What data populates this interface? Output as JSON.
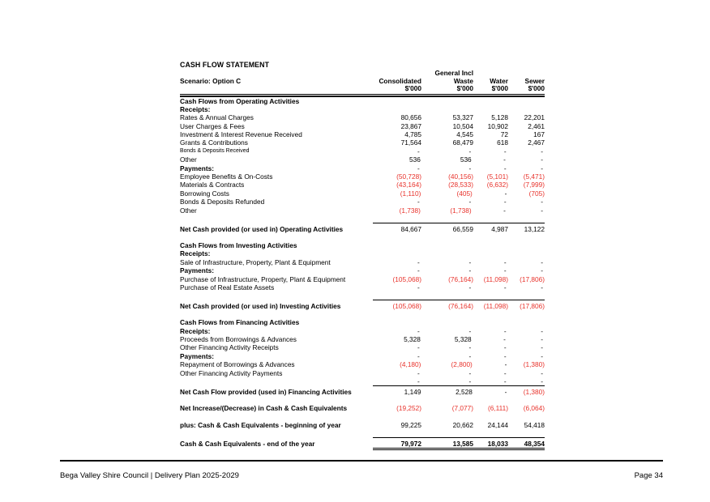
{
  "statement": {
    "title": "CASH FLOW STATEMENT",
    "scenario_label": "Scenario:  Option C",
    "header": {
      "line1": [
        "",
        "General Incl",
        "",
        ""
      ],
      "line2": [
        "Consolidated",
        "Waste",
        "Water",
        "Sewer"
      ],
      "line3": [
        "$'000",
        "$'000",
        "$'000",
        "$'000"
      ]
    },
    "rows": [
      {
        "type": "section",
        "label": "Cash Flows from Operating Activities",
        "values": [
          "",
          "",
          "",
          ""
        ]
      },
      {
        "type": "subhead",
        "label": "Receipts:",
        "values": [
          "",
          "",
          "",
          ""
        ]
      },
      {
        "type": "item",
        "label": "Rates & Annual Charges",
        "values": [
          "80,656",
          "53,327",
          "5,128",
          "22,201"
        ]
      },
      {
        "type": "item",
        "label": "User Charges & Fees",
        "values": [
          "23,867",
          "10,504",
          "10,902",
          "2,461"
        ]
      },
      {
        "type": "item",
        "label": "Investment & Interest Revenue Received",
        "values": [
          "4,785",
          "4,545",
          "72",
          "167"
        ]
      },
      {
        "type": "item",
        "label": "Grants & Contributions",
        "values": [
          "71,564",
          "68,479",
          "618",
          "2,467"
        ]
      },
      {
        "type": "item-small",
        "label": "Bonds & Deposits Received",
        "values": [
          "-",
          "-",
          "-",
          "-"
        ]
      },
      {
        "type": "item",
        "label": "Other",
        "values": [
          "536",
          "536",
          "-",
          "-"
        ]
      },
      {
        "type": "subhead",
        "label": "Payments:",
        "values": [
          "-",
          "-",
          "-",
          "-"
        ]
      },
      {
        "type": "item",
        "label": "Employee Benefits & On-Costs",
        "values": [
          "(50,728)",
          "(40,156)",
          "(5,101)",
          "(5,471)"
        ]
      },
      {
        "type": "item",
        "label": "Materials & Contracts",
        "values": [
          "(43,164)",
          "(28,533)",
          "(6,632)",
          "(7,999)"
        ]
      },
      {
        "type": "item",
        "label": "Borrowing Costs",
        "values": [
          "(1,110)",
          "(405)",
          "-",
          "(705)"
        ]
      },
      {
        "type": "item",
        "label": "Bonds & Deposits Refunded",
        "values": [
          "-",
          "-",
          "-",
          "-"
        ]
      },
      {
        "type": "item",
        "label": "Other",
        "values": [
          "(1,738)",
          "(1,738)",
          "-",
          "-"
        ]
      },
      {
        "type": "spacer"
      },
      {
        "type": "total",
        "label": "Net Cash provided (or used in) Operating Activities",
        "values": [
          "84,667",
          "66,559",
          "4,987",
          "13,122"
        ]
      },
      {
        "type": "spacer"
      },
      {
        "type": "section",
        "label": "Cash Flows from Investing Activities",
        "values": [
          "",
          "",
          "",
          ""
        ]
      },
      {
        "type": "subhead",
        "label": "Receipts:",
        "values": [
          "",
          "",
          "",
          ""
        ]
      },
      {
        "type": "item",
        "label": "Sale of Infrastructure, Property, Plant & Equipment",
        "values": [
          "-",
          "-",
          "-",
          "-"
        ]
      },
      {
        "type": "subhead",
        "label": "Payments:",
        "values": [
          "-",
          "-",
          "-",
          "-"
        ]
      },
      {
        "type": "item",
        "label": "Purchase of Infrastructure, Property, Plant & Equipment",
        "values": [
          "(105,068)",
          "(76,164)",
          "(11,098)",
          "(17,806)"
        ]
      },
      {
        "type": "item",
        "label": "Purchase of Real Estate Assets",
        "values": [
          "-",
          "-",
          "-",
          "-"
        ]
      },
      {
        "type": "spacer"
      },
      {
        "type": "total",
        "label": "Net Cash provided (or used in) Investing Activities",
        "values": [
          "(105,068)",
          "(76,164)",
          "(11,098)",
          "(17,806)"
        ]
      },
      {
        "type": "spacer"
      },
      {
        "type": "section",
        "label": "Cash Flows from Financing Activities",
        "values": [
          "",
          "",
          "",
          ""
        ]
      },
      {
        "type": "subhead",
        "label": "Receipts:",
        "values": [
          "-",
          "-",
          "-",
          "-"
        ]
      },
      {
        "type": "item",
        "label": "Proceeds from Borrowings & Advances",
        "values": [
          "5,328",
          "5,328",
          "-",
          "-"
        ]
      },
      {
        "type": "item",
        "label": "Other Financing Activity Receipts",
        "values": [
          "-",
          "-",
          "-",
          "-"
        ]
      },
      {
        "type": "subhead",
        "label": "Payments:",
        "values": [
          "-",
          "-",
          "-",
          "-"
        ]
      },
      {
        "type": "item",
        "label": "Repayment of Borrowings & Advances",
        "values": [
          "(4,180)",
          "(2,800)",
          "-",
          "(1,380)"
        ]
      },
      {
        "type": "item",
        "label": "Other Financing Activity Payments",
        "values": [
          "-",
          "-",
          "-",
          "-"
        ]
      },
      {
        "type": "item",
        "label": "",
        "values": [
          "-",
          "-",
          "-",
          "-"
        ]
      },
      {
        "type": "total",
        "label": "Net Cash Flow provided (used in) Financing Activities",
        "values": [
          "1,149",
          "2,528",
          "-",
          "(1,380)"
        ]
      },
      {
        "type": "spacer"
      },
      {
        "type": "bold",
        "label": "Net Increase/(Decrease) in Cash & Cash Equivalents",
        "values": [
          "(19,252)",
          "(7,077)",
          "(6,111)",
          "(6,064)"
        ]
      },
      {
        "type": "spacer"
      },
      {
        "type": "bold",
        "label": "plus: Cash & Cash Equivalents - beginning of year",
        "values": [
          "99,225",
          "20,662",
          "24,144",
          "54,418"
        ]
      },
      {
        "type": "spacer"
      },
      {
        "type": "grand",
        "label": "Cash & Cash Equivalents - end of the year",
        "values": [
          "79,972",
          "13,585",
          "18,033",
          "48,354"
        ]
      }
    ]
  },
  "footer": {
    "left_text": "Bega Valley Shire Council | Delivery Plan 2025-2029",
    "right_text": "Page 34"
  },
  "colors": {
    "negative_value": "#e8322b",
    "text": "#000000",
    "background": "#ffffff",
    "rule": "#000000"
  }
}
